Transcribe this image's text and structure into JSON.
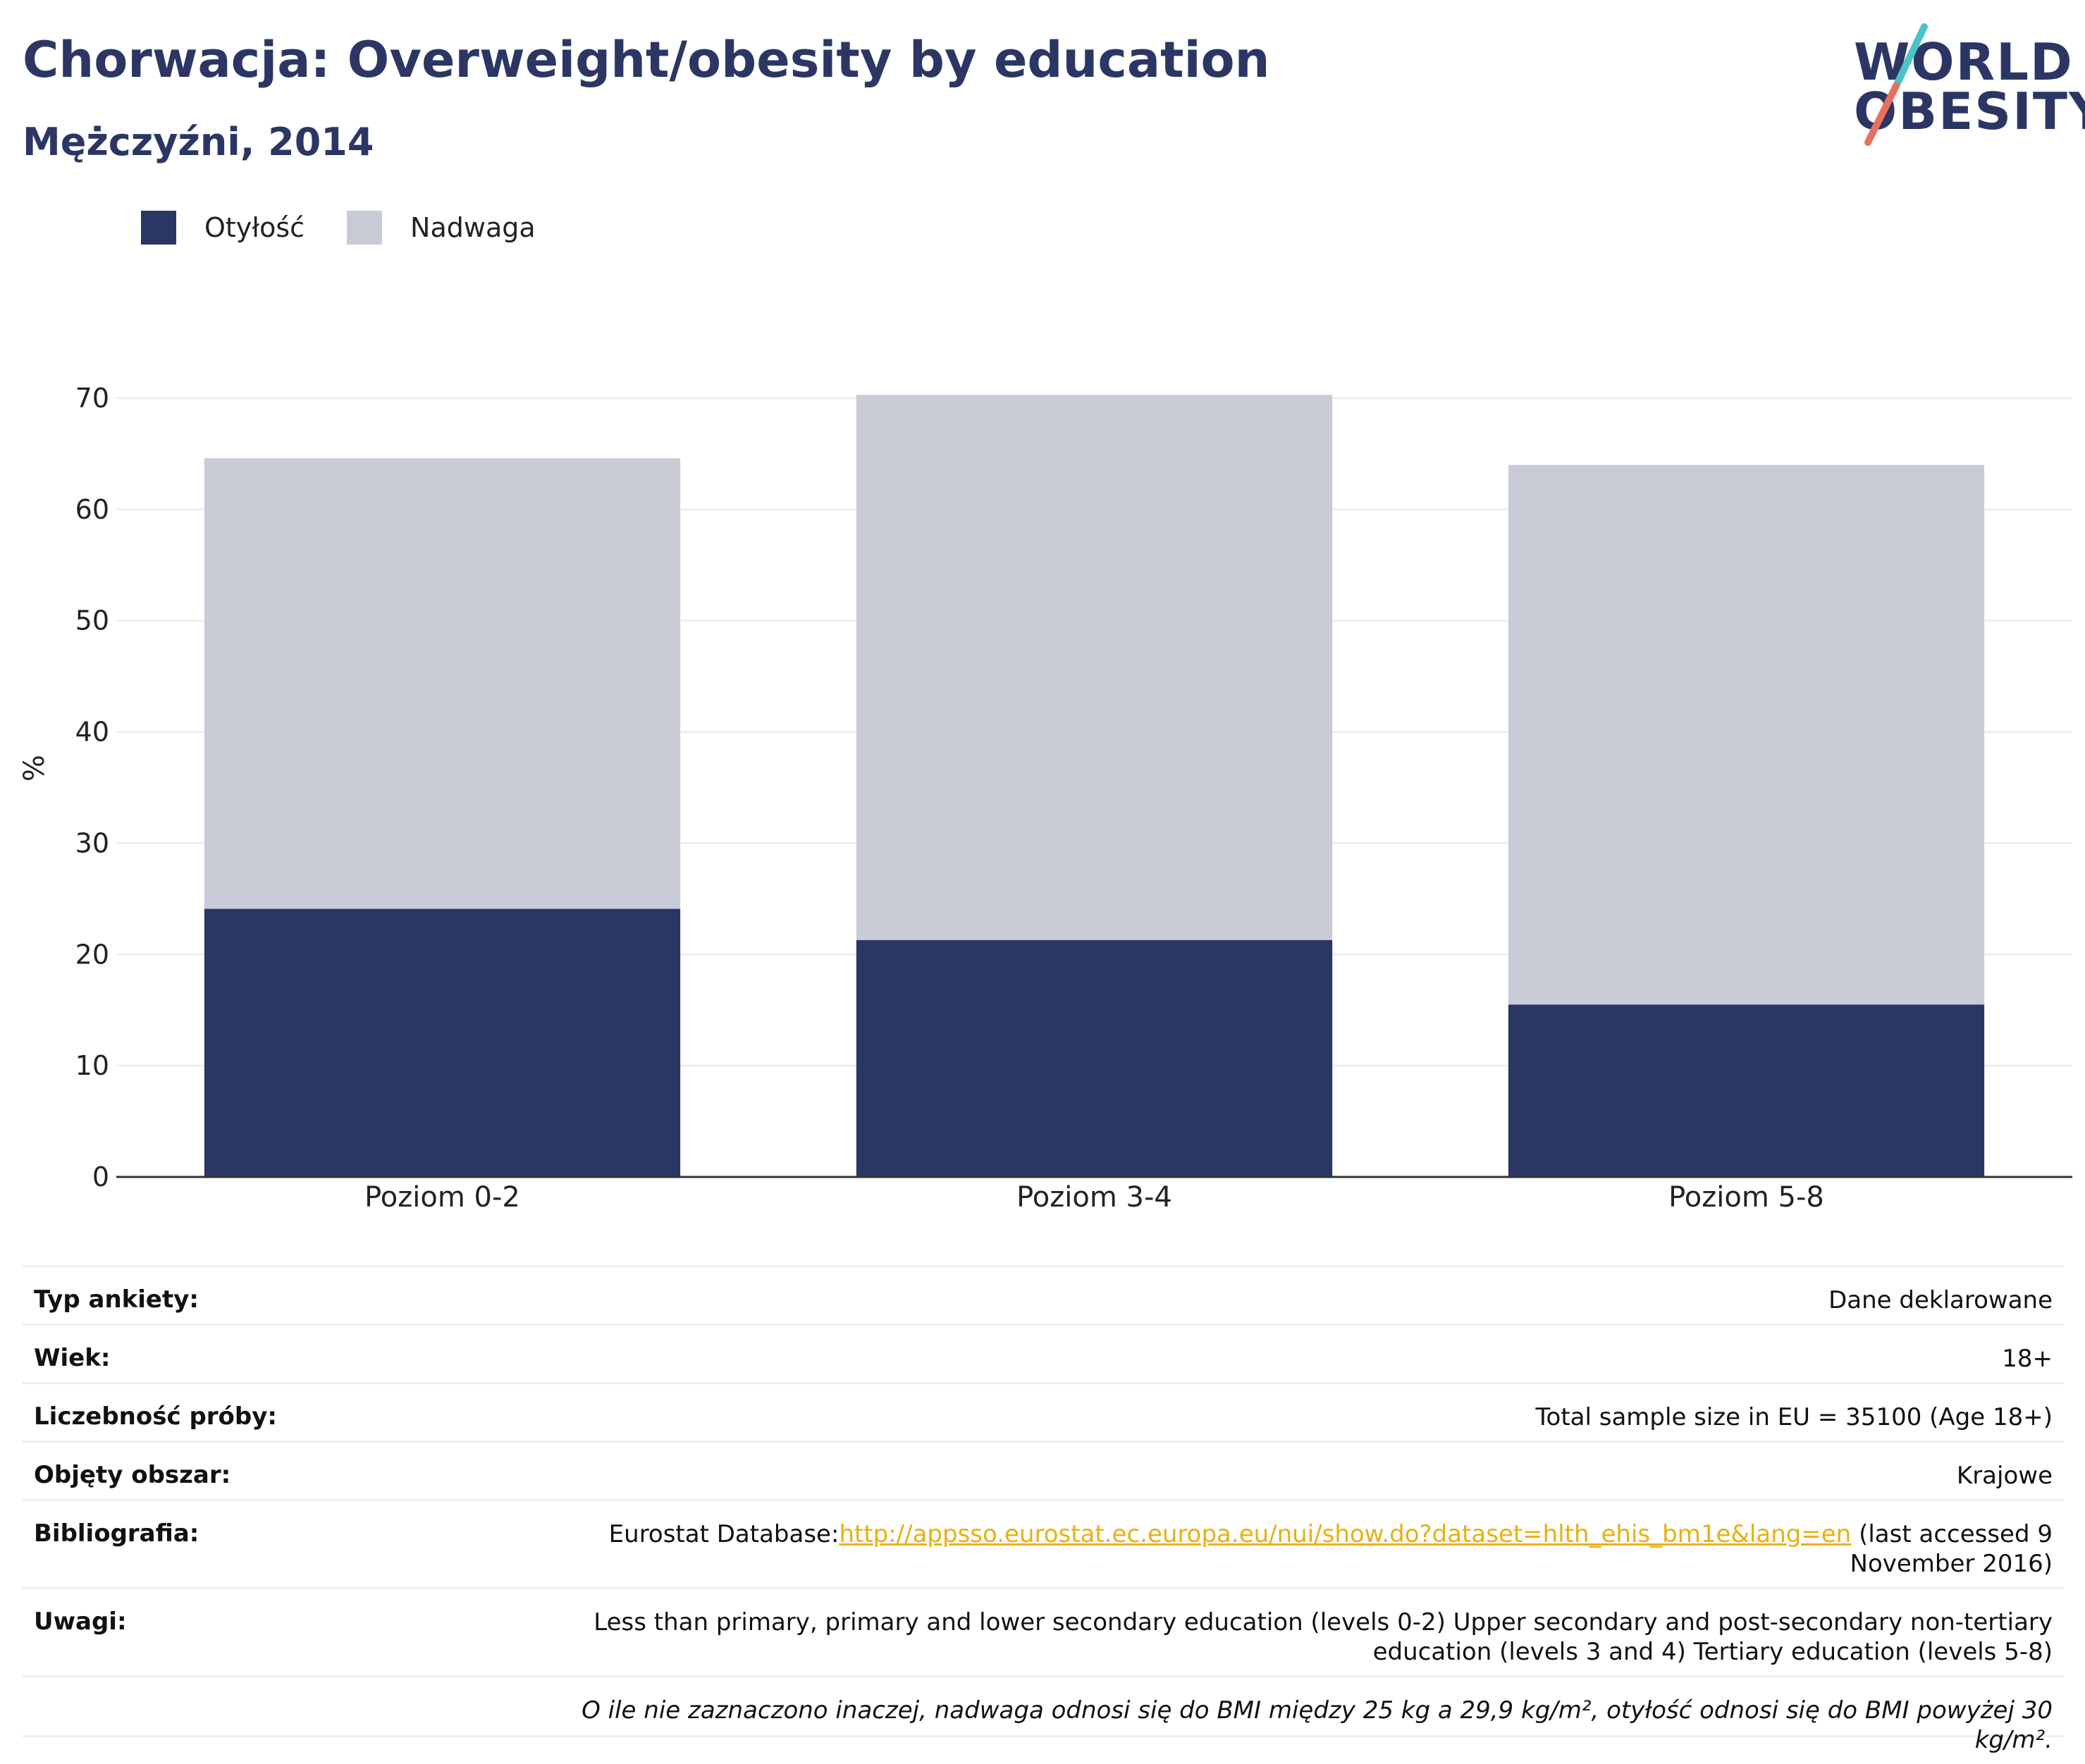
{
  "header": {
    "title": "Chorwacja: Overweight/obesity by education",
    "subtitle": "Mężczyźni, 2014"
  },
  "logo": {
    "line1": "WORLD",
    "line2": "OBESITY",
    "icon": "world-obesity-logo-icon",
    "slash_colors": [
      "#4cc3c7",
      "#e8705f"
    ]
  },
  "colors": {
    "obesity": "#2b3664",
    "overweight": "#c9cbd6",
    "grid": "#eeeeee",
    "axis": "#333333",
    "text": "#222222"
  },
  "chart_data": {
    "type": "bar",
    "stacked": true,
    "categories": [
      "Poziom 0-2",
      "Poziom 3-4",
      "Poziom 5-8"
    ],
    "series": [
      {
        "name": "Otyłość",
        "values": [
          24.1,
          21.3,
          15.5
        ],
        "color": "#2b3664"
      },
      {
        "name": "Nadwaga",
        "values": [
          40.5,
          49.0,
          48.5
        ],
        "color": "#c9cbd6"
      }
    ],
    "ylabel": "%",
    "ylim": [
      0,
      70
    ],
    "yticks": [
      0,
      10,
      20,
      30,
      40,
      50,
      60,
      70
    ],
    "grid": true,
    "legend": "top-left"
  },
  "info": {
    "rows": [
      {
        "label": "Typ ankiety:",
        "value": "Dane deklarowane"
      },
      {
        "label": "Wiek:",
        "value": "18+"
      },
      {
        "label": "Liczebność próby:",
        "value": "Total sample size in EU = 35100 (Age 18+)"
      },
      {
        "label": "Objęty obszar:",
        "value": "Krajowe"
      }
    ],
    "bibliography": {
      "label": "Bibliografia:",
      "prefix": "Eurostat Database:",
      "link": "http://appsso.eurostat.ec.europa.eu/nui/show.do?dataset=hlth_ehis_bm1e&lang=en",
      "suffix": " (last accessed 9 November 2016)"
    },
    "notes": {
      "label": "Uwagi:",
      "value": "Less than primary, primary and lower secondary education (levels 0-2) Upper secondary and post-secondary non-tertiary education (levels 3 and 4) Tertiary education (levels 5-8)"
    },
    "footnote": "O ile nie zaznaczono inaczej, nadwaga odnosi się do BMI między 25 kg a 29,9 kg/m², otyłość odnosi się do BMI powyżej 30 kg/m²."
  }
}
